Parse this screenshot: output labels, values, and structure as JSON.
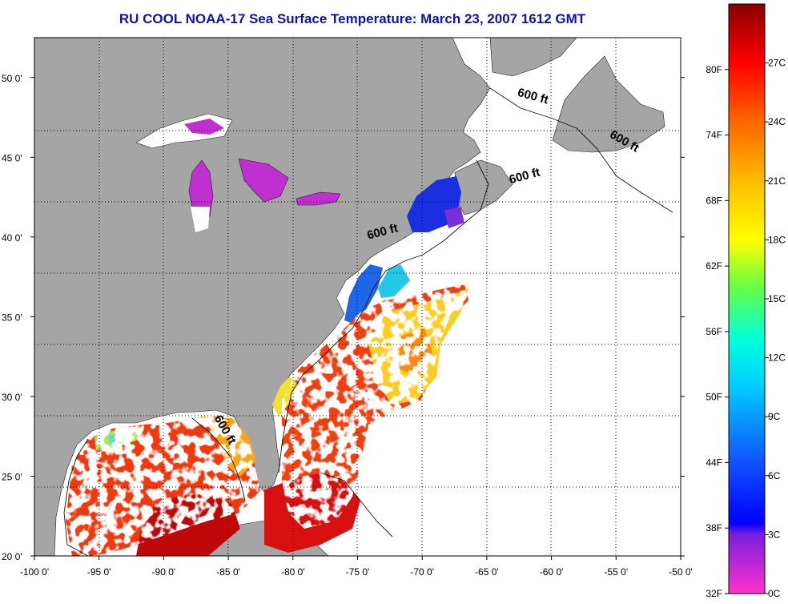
{
  "title": "RU COOL  NOAA-17  Sea Surface Temperature:  March 23, 2007 1612 GMT",
  "map": {
    "lon_range": [
      -100,
      -50
    ],
    "lat_range": [
      20,
      52.5
    ],
    "lon_ticks": [
      {
        "value": -100,
        "label": "-100 0'"
      },
      {
        "value": -95,
        "label": "-95 0'"
      },
      {
        "value": -90,
        "label": "-90 0'"
      },
      {
        "value": -85,
        "label": "-85 0'"
      },
      {
        "value": -80,
        "label": "-80 0'"
      },
      {
        "value": -75,
        "label": "-75 0'"
      },
      {
        "value": -70,
        "label": "-70 0'"
      },
      {
        "value": -65,
        "label": "-65 0'"
      },
      {
        "value": -60,
        "label": "-60 0'"
      },
      {
        "value": -55,
        "label": "-55 0'"
      },
      {
        "value": -50,
        "label": "-50 0'"
      }
    ],
    "lat_ticks": [
      {
        "value": 20,
        "label": "20 0'"
      },
      {
        "value": 25,
        "label": "25 0'"
      },
      {
        "value": 30,
        "label": "30 0'"
      },
      {
        "value": 35,
        "label": "35 0'"
      },
      {
        "value": 40,
        "label": "40 0'"
      },
      {
        "value": 45,
        "label": "45 0'"
      },
      {
        "value": 50,
        "label": "50 0'"
      }
    ],
    "grid": "dotted",
    "depth_labels": [
      {
        "text": "600 ft",
        "lon": -61.5,
        "lat": 48.6,
        "angle": 15
      },
      {
        "text": "600 ft",
        "lon": -54.5,
        "lat": 45.8,
        "angle": 30
      },
      {
        "text": "600 ft",
        "lon": -62,
        "lat": 43.6,
        "angle": -15
      },
      {
        "text": "600 ft",
        "lon": -73,
        "lat": 40.1,
        "angle": -15
      },
      {
        "text": "600 ft",
        "lon": -85.5,
        "lat": 27.8,
        "angle": 60
      }
    ]
  },
  "colorbar": {
    "range_c": [
      0,
      30
    ],
    "labels_c": [
      {
        "value": 0,
        "label": "0C"
      },
      {
        "value": 3,
        "label": "3C"
      },
      {
        "value": 6,
        "label": "6C"
      },
      {
        "value": 9,
        "label": "9C"
      },
      {
        "value": 12,
        "label": "12C"
      },
      {
        "value": 15,
        "label": "15C"
      },
      {
        "value": 18,
        "label": "18C"
      },
      {
        "value": 21,
        "label": "21C"
      },
      {
        "value": 24,
        "label": "24C"
      },
      {
        "value": 27,
        "label": "27C"
      }
    ],
    "labels_f": [
      {
        "value": 32,
        "label": "32F"
      },
      {
        "value": 38,
        "label": "38F"
      },
      {
        "value": 44,
        "label": "44F"
      },
      {
        "value": 50,
        "label": "50F"
      },
      {
        "value": 56,
        "label": "56F"
      },
      {
        "value": 62,
        "label": "62F"
      },
      {
        "value": 68,
        "label": "68F"
      },
      {
        "value": 74,
        "label": "74F"
      },
      {
        "value": 80,
        "label": "80F"
      }
    ]
  },
  "colors": {
    "land": "#a5a5a5",
    "no_data": "#ffffff",
    "warm": "#cc0000",
    "cool": "#2222dd",
    "cold": "#cc33cc"
  }
}
